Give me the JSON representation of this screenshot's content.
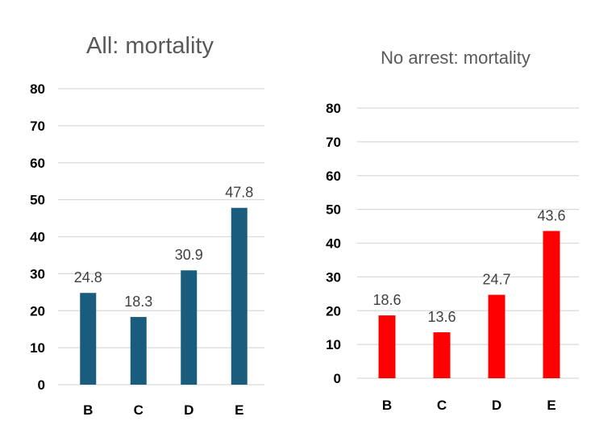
{
  "chart_data": [
    {
      "type": "bar",
      "title": "All: mortality",
      "categories": [
        "B",
        "C",
        "D",
        "E"
      ],
      "values": [
        24.8,
        18.3,
        30.9,
        47.8
      ],
      "value_labels": [
        "24.8",
        "18.3",
        "30.9",
        "47.8"
      ],
      "ylim": [
        0,
        80
      ],
      "yticks": [
        "0",
        "10",
        "20",
        "30",
        "40",
        "50",
        "60",
        "70",
        "80"
      ],
      "color": "#1a5c7d",
      "grid": true,
      "xlabel": "",
      "ylabel": ""
    },
    {
      "type": "bar",
      "title": "No arrest: mortality",
      "categories": [
        "B",
        "C",
        "D",
        "E"
      ],
      "values": [
        18.6,
        13.6,
        24.7,
        43.6
      ],
      "value_labels": [
        "18.6",
        "13.6",
        "24.7",
        "43.6"
      ],
      "ylim": [
        0,
        80
      ],
      "yticks": [
        "0",
        "10",
        "20",
        "30",
        "40",
        "50",
        "60",
        "70",
        "80"
      ],
      "color": "#ff0000",
      "grid": true,
      "xlabel": "",
      "ylabel": ""
    }
  ]
}
